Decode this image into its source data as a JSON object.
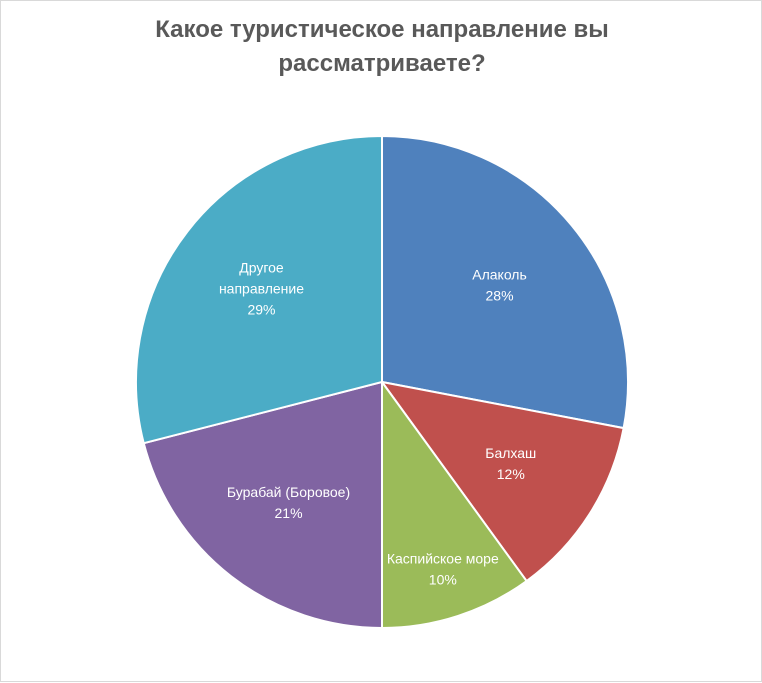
{
  "chart_data": {
    "type": "pie",
    "title": "Какое туристическое направление вы рассматриваете?",
    "start_angle_deg": 0,
    "direction": "clockwise",
    "slices": [
      {
        "label": "Алаколь",
        "percent_label": "28%",
        "value": 28,
        "color": "#4f81bd"
      },
      {
        "label": "Балхаш",
        "percent_label": "12%",
        "value": 12,
        "color": "#c0504d"
      },
      {
        "label": "Каспийское море",
        "percent_label": "10%",
        "value": 10,
        "color": "#9bbb59"
      },
      {
        "label": "Бурабай (Боровое)",
        "percent_label": "21%",
        "value": 21,
        "color": "#8064a2"
      },
      {
        "label": "Другое направление",
        "label_lines": [
          "Другое",
          "направление"
        ],
        "percent_label": "29%",
        "value": 29,
        "color": "#4bacc6"
      }
    ]
  }
}
